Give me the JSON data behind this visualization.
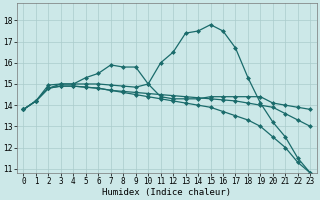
{
  "xlabel": "Humidex (Indice chaleur)",
  "bg_color": "#cce8e8",
  "grid_color": "#aacccc",
  "line_color": "#1a6b6b",
  "xlim": [
    -0.5,
    23.5
  ],
  "ylim": [
    10.8,
    18.8
  ],
  "xticks": [
    0,
    1,
    2,
    3,
    4,
    5,
    6,
    7,
    8,
    9,
    10,
    11,
    12,
    13,
    14,
    15,
    16,
    17,
    18,
    19,
    20,
    21,
    22,
    23
  ],
  "yticks": [
    11,
    12,
    13,
    14,
    15,
    16,
    17,
    18
  ],
  "curve1_x": [
    0,
    1,
    2,
    3,
    4,
    5,
    6,
    7,
    8,
    9,
    10,
    11,
    12,
    13,
    14,
    15,
    16,
    17,
    18,
    19,
    20,
    21,
    22,
    23
  ],
  "curve1_y": [
    13.8,
    14.2,
    14.8,
    15.0,
    15.0,
    15.3,
    15.5,
    15.9,
    15.8,
    15.8,
    15.0,
    14.4,
    14.3,
    14.3,
    14.3,
    14.4,
    14.4,
    14.4,
    14.4,
    14.4,
    14.1,
    14.0,
    13.9,
    13.8
  ],
  "curve2_x": [
    0,
    1,
    2,
    3,
    4,
    5,
    6,
    7,
    8,
    9,
    10,
    11,
    12,
    13,
    14,
    15,
    16,
    17,
    18,
    19,
    20,
    21,
    22,
    23
  ],
  "curve2_y": [
    13.8,
    14.2,
    14.95,
    15.0,
    15.0,
    15.0,
    15.0,
    14.95,
    14.9,
    14.85,
    15.0,
    16.0,
    16.5,
    17.4,
    17.5,
    17.8,
    17.5,
    16.7,
    15.3,
    14.1,
    13.2,
    12.5,
    11.5,
    10.8
  ],
  "curve3_x": [
    0,
    1,
    2,
    3,
    4,
    5,
    6,
    7,
    8,
    9,
    10,
    11,
    12,
    13,
    14,
    15,
    16,
    17,
    18,
    19,
    20,
    21,
    22,
    23
  ],
  "curve3_y": [
    13.8,
    14.2,
    14.8,
    14.9,
    14.9,
    14.85,
    14.8,
    14.7,
    14.65,
    14.6,
    14.55,
    14.5,
    14.45,
    14.4,
    14.35,
    14.3,
    14.25,
    14.2,
    14.1,
    14.0,
    13.9,
    13.6,
    13.3,
    13.0
  ],
  "curve4_x": [
    0,
    1,
    2,
    3,
    4,
    5,
    6,
    7,
    8,
    9,
    10,
    11,
    12,
    13,
    14,
    15,
    16,
    17,
    18,
    19,
    20,
    21,
    22,
    23
  ],
  "curve4_y": [
    13.8,
    14.2,
    14.8,
    14.9,
    14.9,
    14.85,
    14.8,
    14.7,
    14.6,
    14.5,
    14.4,
    14.3,
    14.2,
    14.1,
    14.0,
    13.9,
    13.7,
    13.5,
    13.3,
    13.0,
    12.5,
    12.0,
    11.3,
    10.8
  ],
  "xlabel_fontsize": 6.5,
  "tick_fontsize": 5.5,
  "marker_size": 2.5,
  "line_width": 0.9
}
